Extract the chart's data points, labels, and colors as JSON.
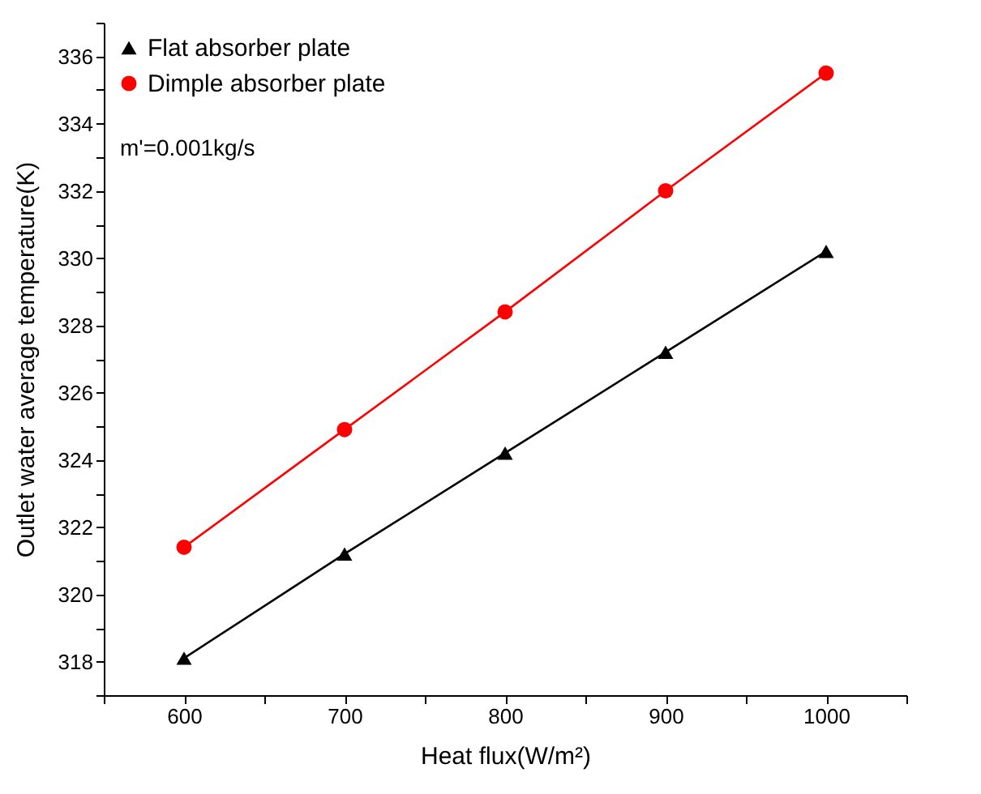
{
  "chart_data": {
    "type": "line",
    "xlabel": "Heat flux(W/m²)",
    "ylabel": "Outlet water average temperature(K)",
    "x": [
      600,
      700,
      800,
      900,
      1000
    ],
    "series": [
      {
        "name": "Flat absorber plate",
        "color": "#000000",
        "marker": "triangle",
        "values": [
          318.1,
          321.2,
          324.2,
          327.2,
          330.2
        ]
      },
      {
        "name": "Dimple absorber plate",
        "color": "#ff0000",
        "marker": "circle",
        "values": [
          321.4,
          324.9,
          328.4,
          332.0,
          335.5
        ]
      }
    ],
    "xlim": [
      550,
      1050
    ],
    "xticks": [
      {
        "value": 550,
        "label": null
      },
      600,
      {
        "value": 650,
        "label": null
      },
      700,
      {
        "value": 750,
        "label": null
      },
      800,
      {
        "value": 850,
        "label": null
      },
      900,
      {
        "value": 950,
        "label": null
      },
      1000,
      {
        "value": 1050,
        "label": null
      }
    ],
    "ylim": [
      317,
      337
    ],
    "yticks": [
      {
        "value": 317,
        "label": null
      },
      318,
      {
        "value": 319,
        "label": null
      },
      320,
      {
        "value": 321,
        "label": null
      },
      322,
      {
        "value": 323,
        "label": null
      },
      324,
      {
        "value": 325,
        "label": null
      },
      326,
      {
        "value": 327,
        "label": null
      },
      328,
      {
        "value": 329,
        "label": null
      },
      330,
      {
        "value": 331,
        "label": null
      },
      332,
      {
        "value": 333,
        "label": null
      },
      334,
      {
        "value": 335,
        "label": null
      },
      336,
      {
        "value": 337,
        "label": null
      }
    ],
    "annotations": [
      "m'=0.001kg/s"
    ],
    "legend": "top left",
    "grid": false,
    "line_style": "solid"
  }
}
